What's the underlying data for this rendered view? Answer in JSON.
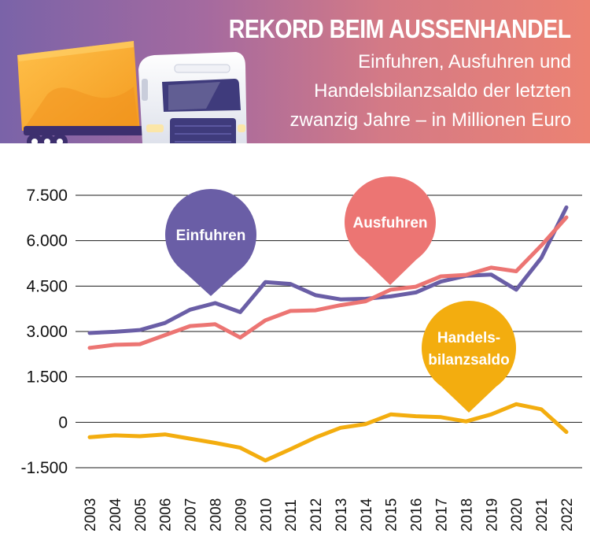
{
  "header": {
    "title": "REKORD BEIM AUSSENHANDEL",
    "subtitle": "Einfuhren, Ausfuhren und Handelsbilanzsaldo der letzten zwanzig Jahre – in Millionen Euro",
    "truck_icon": "truck-icon"
  },
  "colors": {
    "einfuhren": "#6a5ea6",
    "ausfuhren": "#ec7573",
    "handelsbilanzsaldo": "#f3ad0f",
    "grid": "#1a1a1a"
  },
  "chart_data": {
    "type": "line",
    "title": "REKORD BEIM AUSSENHANDEL",
    "subtitle": "Einfuhren, Ausfuhren und Handelsbilanzsaldo der letzten zwanzig Jahre – in Millionen Euro",
    "xlabel": "",
    "ylabel": "",
    "ylim": [
      -1500,
      7500
    ],
    "yticks": [
      7500,
      6000,
      4500,
      3000,
      1500,
      0,
      -1500
    ],
    "ytick_labels": [
      "7.500",
      "6.000",
      "4.500",
      "3.000",
      "1.500",
      "0",
      "-1.500"
    ],
    "grid": true,
    "x": [
      "2003",
      "2004",
      "2005",
      "2006",
      "2007",
      "2008",
      "2009",
      "2010",
      "2011",
      "2012",
      "2013",
      "2014",
      "2015",
      "2016",
      "2017",
      "2018",
      "2019",
      "2020",
      "2021",
      "2022"
    ],
    "series": [
      {
        "name": "Einfuhren",
        "key": "einfuhren",
        "values": [
          2950,
          2990,
          3050,
          3280,
          3720,
          3940,
          3640,
          4630,
          4570,
          4200,
          4060,
          4080,
          4160,
          4290,
          4650,
          4840,
          4880,
          4380,
          5430,
          7100
        ]
      },
      {
        "name": "Ausfuhren",
        "key": "ausfuhren",
        "values": [
          2460,
          2560,
          2580,
          2880,
          3180,
          3240,
          2800,
          3370,
          3680,
          3700,
          3870,
          4000,
          4380,
          4480,
          4820,
          4870,
          5110,
          4990,
          5840,
          6770
        ]
      },
      {
        "name": "Handels-bilanzsaldo",
        "key": "handelsbilanzsaldo",
        "values": [
          -490,
          -430,
          -460,
          -400,
          -540,
          -680,
          -840,
          -1260,
          -890,
          -500,
          -180,
          -60,
          260,
          200,
          170,
          30,
          260,
          600,
          430,
          -320
        ]
      }
    ],
    "annotations": [
      {
        "key": "einfuhren",
        "lines": [
          "Einfuhren"
        ]
      },
      {
        "key": "ausfuhren",
        "lines": [
          "Ausfuhren"
        ]
      },
      {
        "key": "handelsbilanzsaldo",
        "lines": [
          "Handels-",
          "bilanzsaldo"
        ]
      }
    ]
  }
}
